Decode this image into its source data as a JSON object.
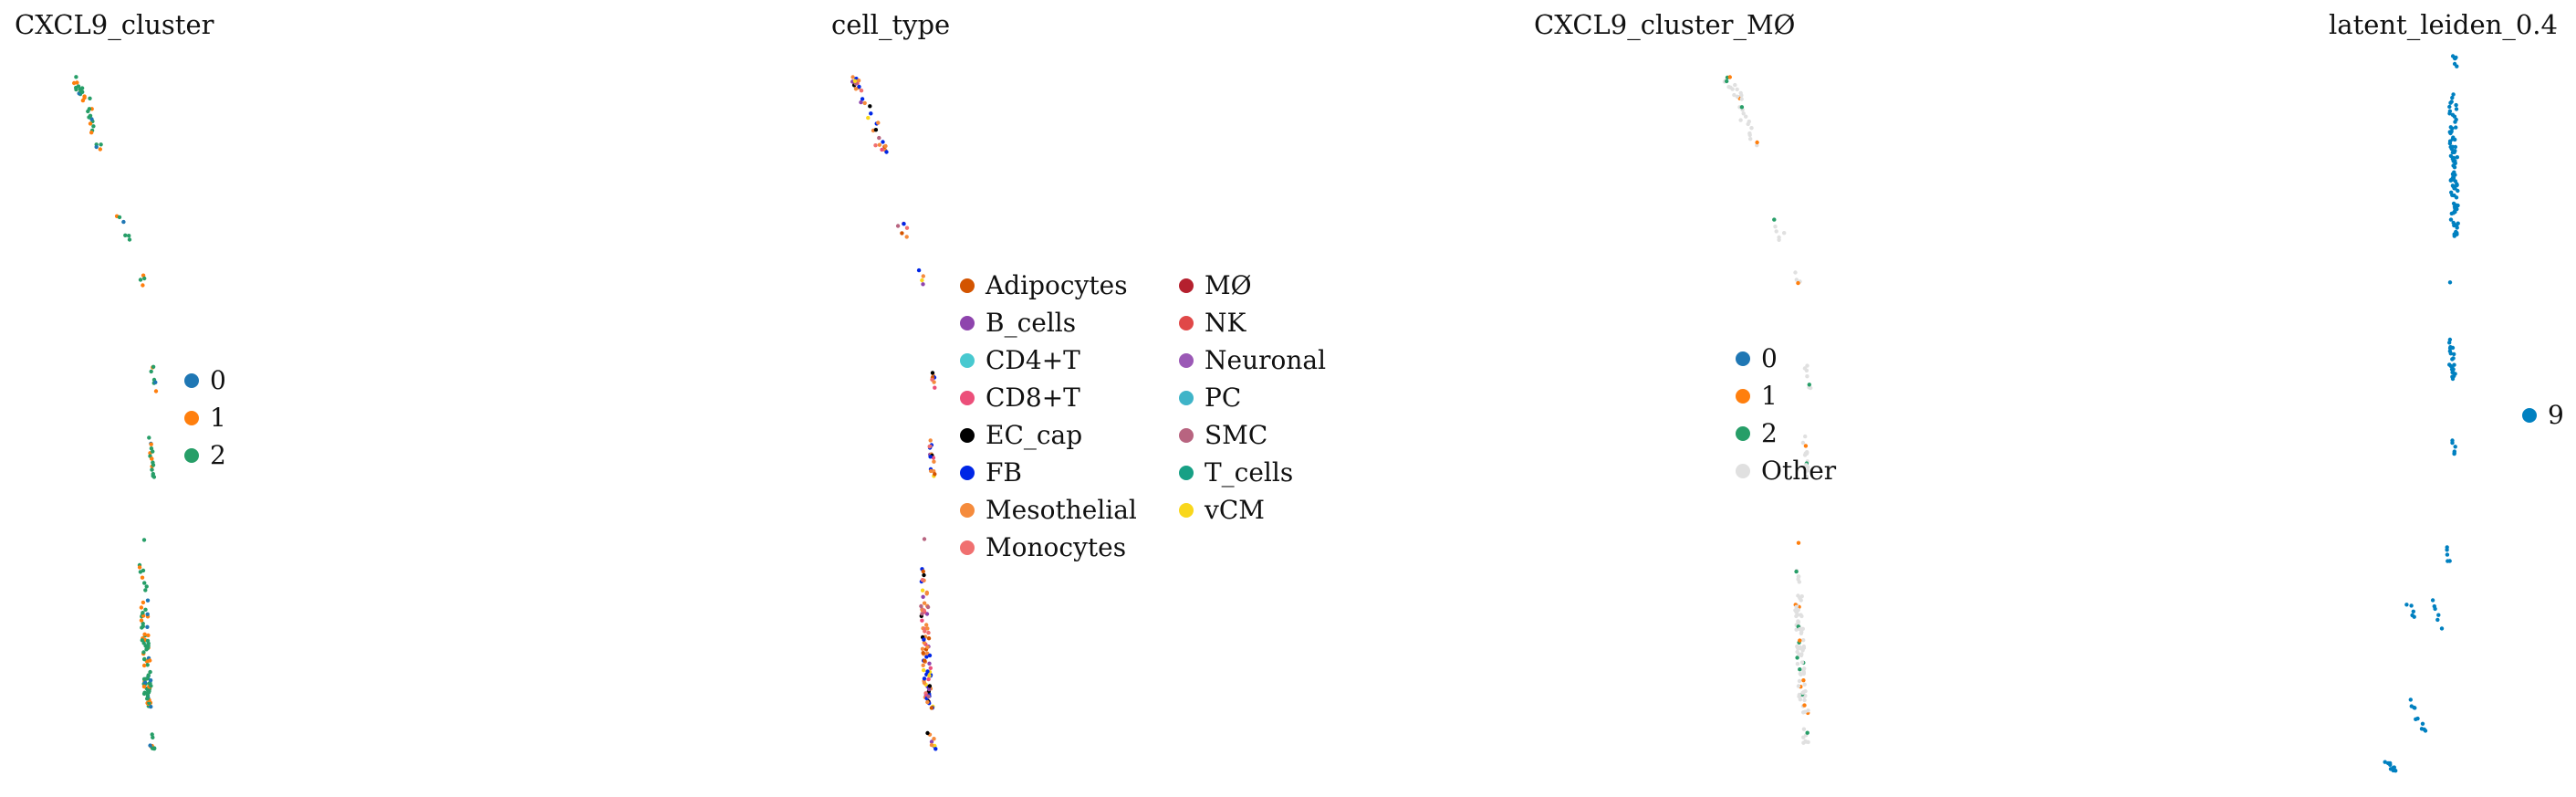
{
  "chart_data": [
    {
      "type": "scatter",
      "title": "CXCL9_cluster",
      "legend": [
        {
          "label": "0",
          "color": "#1f77b4"
        },
        {
          "label": "1",
          "color": "#ff7f0e"
        },
        {
          "label": "2",
          "color": "#279e68"
        }
      ],
      "legend_placement": "right",
      "axes": "off",
      "grid": false
    },
    {
      "type": "scatter",
      "title": "cell_type",
      "legend": [
        {
          "label": "Adipocytes",
          "color": "#d35400"
        },
        {
          "label": "B_cells",
          "color": "#8e44ad"
        },
        {
          "label": "CD4+T",
          "color": "#48c9d0"
        },
        {
          "label": "CD8+T",
          "color": "#ec4f7a"
        },
        {
          "label": "EC_cap",
          "color": "#000000"
        },
        {
          "label": "FB",
          "color": "#0026e6"
        },
        {
          "label": "Mesothelial",
          "color": "#f58b3c"
        },
        {
          "label": "Monocytes",
          "color": "#f07070"
        },
        {
          "label": "MØ",
          "color": "#b5202e"
        },
        {
          "label": "NK",
          "color": "#e04848"
        },
        {
          "label": "Neuronal",
          "color": "#9b59b6"
        },
        {
          "label": "PC",
          "color": "#3fb4c8"
        },
        {
          "label": "SMC",
          "color": "#b86480"
        },
        {
          "label": "T_cells",
          "color": "#17a085"
        },
        {
          "label": "vCM",
          "color": "#f9d71c"
        }
      ],
      "legend_placement": "right",
      "axes": "off",
      "grid": false
    },
    {
      "type": "scatter",
      "title": "CXCL9_cluster_MØ",
      "legend": [
        {
          "label": "0",
          "color": "#1f77b4"
        },
        {
          "label": "1",
          "color": "#ff7f0e"
        },
        {
          "label": "2",
          "color": "#279e68"
        },
        {
          "label": "Other",
          "color": "#e0e0e0"
        }
      ],
      "legend_placement": "right",
      "axes": "off",
      "grid": false
    },
    {
      "type": "scatter",
      "title": "latent_leiden_0.4",
      "legend": [
        {
          "label": "9",
          "color": "#0080c0"
        }
      ],
      "legend_placement": "right",
      "axes": "off",
      "grid": false
    }
  ]
}
